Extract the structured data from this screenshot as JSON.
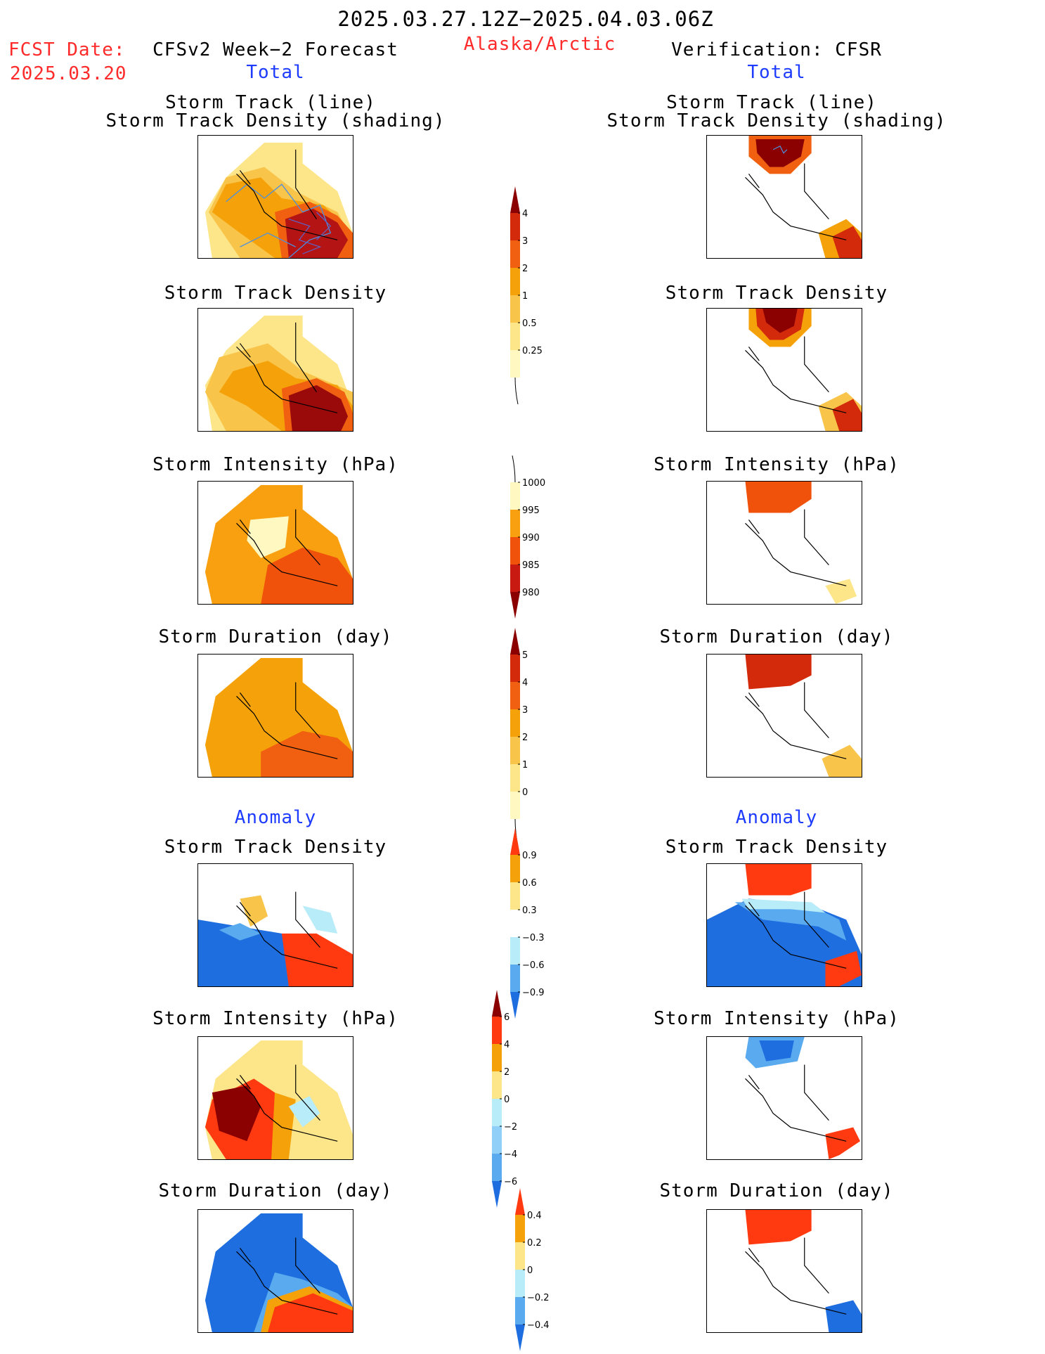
{
  "header": {
    "title": "2025.03.27.12Z−2025.04.03.06Z",
    "fcst_label": "FCST Date:",
    "fcst_date": "2025.03.20",
    "forecast_name": "CFSv2 Week−2 Forecast",
    "region": "Alaska/Arctic",
    "verification": "Verification: CFSR",
    "total_left": "Total",
    "total_right": "Total",
    "anomaly_left": "Anomaly",
    "anomaly_right": "Anomaly"
  },
  "panel_titles": {
    "track_line": "Storm Track (line)",
    "track_shading": "Storm Track Density (shading)",
    "track_density": "Storm Track Density",
    "intensity": "Storm Intensity (hPa)",
    "duration": "Storm Duration (day)"
  },
  "colorbars": {
    "density": {
      "labels": [
        "4",
        "3",
        "2",
        "1",
        "0.5",
        "0.25"
      ],
      "colors": [
        "#8b0000",
        "#d42a0c",
        "#f06010",
        "#f5a20a",
        "#f8c44a",
        "#fde68a",
        "#fff8c0"
      ]
    },
    "intensity": {
      "labels": [
        "1000",
        "995",
        "990",
        "985",
        "980"
      ],
      "colors": [
        "#fff8c0",
        "#f8a010",
        "#f0520c",
        "#c81a10",
        "#8b0000"
      ]
    },
    "duration": {
      "labels": [
        "5",
        "4",
        "3",
        "2",
        "1",
        "0"
      ],
      "colors": [
        "#8b0000",
        "#d42a0c",
        "#f06010",
        "#f5a20a",
        "#f8c44a",
        "#fde68a",
        "#fff8c0"
      ]
    },
    "anom_density": {
      "labels": [
        "0.9",
        "0.6",
        "0.3",
        "−0.3",
        "−0.6",
        "−0.9"
      ],
      "colors": [
        "#ff3a10",
        "#f5a20a",
        "#fde68a",
        "#ffffff",
        "#b8ecf8",
        "#5aaaf0",
        "#1e6ee0"
      ]
    },
    "anom_intensity": {
      "labels": [
        "6",
        "4",
        "2",
        "0",
        "−2",
        "−4",
        "−6"
      ],
      "colors": [
        "#8b0000",
        "#ff3a10",
        "#f5a20a",
        "#fde68a",
        "#b8ecf8",
        "#90d0f8",
        "#5aaaf0",
        "#1e6ee0"
      ]
    },
    "anom_duration": {
      "labels": [
        "0.4",
        "0.2",
        "0",
        "−0.2",
        "−0.4"
      ],
      "colors": [
        "#ff3a10",
        "#f5a20a",
        "#fde68a",
        "#b8ecf8",
        "#5aaaf0",
        "#1e6ee0"
      ]
    }
  }
}
